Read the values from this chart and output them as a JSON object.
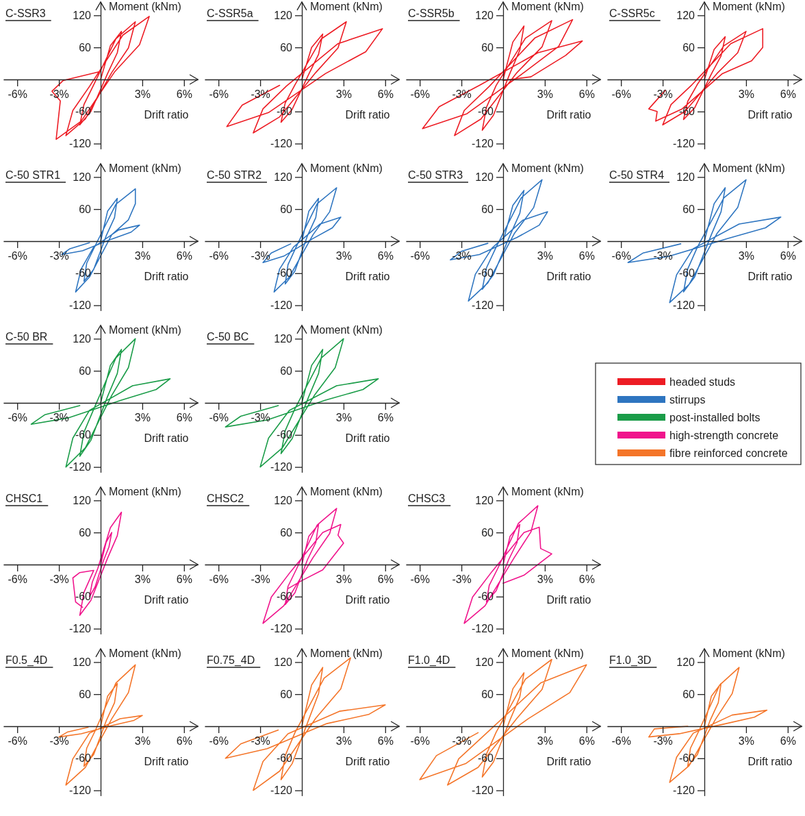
{
  "chart_data": [
    {
      "type": "line",
      "title": "C-SSR3",
      "xlabel": "Drift ratio",
      "ylabel": "Moment (kNm)",
      "xlim": [
        -7,
        7
      ],
      "ylim": [
        -130,
        145
      ],
      "xticks": [
        {
          "value": -6,
          "label": "-6%"
        },
        {
          "value": -3,
          "label": "-3%"
        },
        {
          "value": 3,
          "label": "3%"
        },
        {
          "value": 6,
          "label": "6%"
        }
      ],
      "yticks": [
        -120,
        -60,
        60,
        120
      ],
      "series": [
        {
          "name": "headed studs",
          "color": "#ed1c24",
          "x": [
            0,
            0.7,
            1.5,
            1.2,
            0.5,
            -0.7,
            -1.5,
            -1.2,
            -0.5,
            1.1,
            2.5,
            2,
            0.8,
            -1.1,
            -2.5,
            -2,
            -0.8,
            1.6,
            3.5,
            2.8,
            1,
            -1.4,
            -3.2,
            -2.9,
            -3.5,
            -2.7,
            0
          ],
          "values": [
            0,
            63,
            90,
            50,
            11,
            -60,
            -85,
            -47,
            -10,
            76,
            108,
            59,
            13,
            -74,
            -105,
            -58,
            -13,
            83,
            118,
            65,
            14,
            -78,
            -112,
            -40,
            -22,
            -2,
            15
          ]
        }
      ]
    },
    {
      "type": "line",
      "title": "C-SSR5a",
      "xlabel": "Drift ratio",
      "ylabel": "Moment (kNm)",
      "xlim": [
        -7,
        7
      ],
      "ylim": [
        -130,
        145
      ],
      "xticks": [
        {
          "value": -6,
          "label": "-6%"
        },
        {
          "value": -3,
          "label": "-3%"
        },
        {
          "value": 3,
          "label": "3%"
        },
        {
          "value": 6,
          "label": "6%"
        }
      ],
      "yticks": [
        -120,
        -60,
        60,
        120
      ],
      "series": [
        {
          "color": "#ed1c24",
          "x": [
            0,
            0.7,
            1.5,
            1.2,
            0.5,
            -0.7,
            -1.5,
            -1.2,
            -0.5,
            1.4,
            3.2,
            2.6,
            1,
            -1.6,
            -3.5,
            -2.8,
            -1.1,
            2.6,
            5.8,
            4.6,
            1.7,
            -2.4,
            -5.4,
            -4.3,
            -1.6
          ],
          "values": [
            0,
            60,
            85,
            47,
            10,
            -56,
            -80,
            -44,
            -10,
            76,
            108,
            59,
            13,
            -70,
            -100,
            -55,
            -12,
            67,
            95,
            52,
            11,
            -62,
            -88,
            -48,
            -11
          ]
        }
      ]
    },
    {
      "type": "line",
      "title": "C-SSR5b",
      "xlabel": "Drift ratio",
      "ylabel": "Moment (kNm)",
      "xlim": [
        -7,
        7
      ],
      "ylim": [
        -130,
        145
      ],
      "xticks": [
        {
          "value": -6,
          "label": "-6%"
        },
        {
          "value": -3,
          "label": "-3%"
        },
        {
          "value": 3,
          "label": "3%"
        },
        {
          "value": 6,
          "label": "6%"
        }
      ],
      "yticks": [
        -120,
        -60,
        60,
        120
      ],
      "series": [
        {
          "color": "#ed1c24",
          "x": [
            0,
            0.7,
            1.5,
            1.2,
            0.5,
            -0.7,
            -1.5,
            -1.2,
            -0.5,
            1.6,
            3.5,
            2.8,
            1,
            -1.6,
            -3.5,
            -2.8,
            -1,
            2.3,
            5,
            4,
            1.5,
            -2.6,
            -5.8,
            -4.6,
            -1.7,
            2.5,
            5.7,
            4.5,
            2,
            0
          ],
          "values": [
            0,
            70,
            100,
            55,
            12,
            -67,
            -95,
            -52,
            -11,
            77,
            110,
            61,
            13,
            -74,
            -105,
            -58,
            -13,
            78,
            112,
            62,
            13,
            -64,
            -92,
            -51,
            -11,
            50,
            72,
            45,
            5,
            -2
          ]
        }
      ]
    },
    {
      "type": "line",
      "title": "C-SSR5c",
      "xlabel": "Drift ratio",
      "ylabel": "Moment (kNm)",
      "xlim": [
        -7,
        7
      ],
      "ylim": [
        -130,
        145
      ],
      "xticks": [
        {
          "value": -6,
          "label": "-6%"
        },
        {
          "value": -3,
          "label": "-3%"
        },
        {
          "value": 3,
          "label": "3%"
        },
        {
          "value": 6,
          "label": "6%"
        }
      ],
      "yticks": [
        -120,
        -60,
        60,
        120
      ],
      "series": [
        {
          "color": "#ed1c24",
          "x": [
            0,
            0.7,
            1.5,
            1.2,
            0.5,
            -0.7,
            -1.5,
            -1.2,
            -0.5,
            1.4,
            3,
            2.4,
            0.9,
            -1.4,
            -3,
            -2.4,
            -0.9,
            1.9,
            4.2,
            4.2,
            3.4,
            1.3,
            -1.6,
            -3.5,
            -3.4,
            -4,
            -2.8
          ],
          "values": [
            0,
            56,
            80,
            44,
            10,
            -53,
            -75,
            -41,
            -9,
            63,
            90,
            50,
            11,
            -60,
            -85,
            -47,
            -10,
            67,
            95,
            60,
            35,
            11,
            -55,
            -78,
            -60,
            -55,
            -20
          ]
        }
      ]
    },
    {
      "type": "line",
      "title": "C-50 STR1",
      "xlabel": "Drift ratio",
      "ylabel": "Moment (kNm)",
      "xlim": [
        -7,
        7
      ],
      "ylim": [
        -130,
        145
      ],
      "xticks": [
        {
          "value": -6,
          "label": "-6%"
        },
        {
          "value": -3,
          "label": "-3%"
        },
        {
          "value": 3,
          "label": "3%"
        },
        {
          "value": 6,
          "label": "6%"
        }
      ],
      "yticks": [
        -120,
        -60,
        60,
        120
      ],
      "series": [
        {
          "name": "stirrups",
          "color": "#2e75c0",
          "x": [
            0,
            0.5,
            1.2,
            1,
            0.4,
            -0.5,
            -1.2,
            -1,
            -0.4,
            1.1,
            2.5,
            2.5,
            2,
            0.8,
            -0.8,
            -1.8,
            -1.4,
            -0.5,
            1.3,
            2.8,
            2.2,
            0.8,
            -1.3,
            -2.8,
            -2.2,
            -0.8
          ],
          "values": [
            0,
            56,
            80,
            44,
            10,
            -53,
            -75,
            -41,
            -9,
            69,
            98,
            70,
            40,
            12,
            -67,
            -95,
            -52,
            -11,
            21,
            30,
            17,
            4,
            -18,
            -25,
            -14,
            -3
          ]
        }
      ]
    },
    {
      "type": "line",
      "title": "C-50 STR2",
      "xlabel": "Drift ratio",
      "ylabel": "Moment (kNm)",
      "xlim": [
        -7,
        7
      ],
      "ylim": [
        -130,
        145
      ],
      "xticks": [
        {
          "value": -6,
          "label": "-6%"
        },
        {
          "value": -3,
          "label": "-3%"
        },
        {
          "value": 3,
          "label": "3%"
        },
        {
          "value": 6,
          "label": "6%"
        }
      ],
      "yticks": [
        -120,
        -60,
        60,
        120
      ],
      "series": [
        {
          "color": "#2e75c0",
          "x": [
            0,
            0.5,
            1.2,
            1,
            0.4,
            -0.5,
            -1.2,
            -1,
            -0.4,
            1.1,
            2.5,
            2,
            0.8,
            -0.9,
            -2,
            -1.6,
            -0.6,
            1.3,
            2.8,
            2.2,
            0.8,
            -1.3,
            -2.8,
            -2.2,
            -0.8
          ],
          "values": [
            0,
            56,
            80,
            44,
            10,
            -56,
            -80,
            -44,
            -10,
            70,
            100,
            55,
            12,
            -67,
            -95,
            -52,
            -11,
            32,
            45,
            25,
            5,
            -28,
            -40,
            -22,
            -5
          ]
        }
      ]
    },
    {
      "type": "line",
      "title": "C-50 STR3",
      "xlabel": "Drift ratio",
      "ylabel": "Moment (kNm)",
      "xlim": [
        -7,
        7
      ],
      "ylim": [
        -130,
        145
      ],
      "xticks": [
        {
          "value": -6,
          "label": "-6%"
        },
        {
          "value": -3,
          "label": "-3%"
        },
        {
          "value": 3,
          "label": "3%"
        },
        {
          "value": 6,
          "label": "6%"
        }
      ],
      "yticks": [
        -120,
        -60,
        60,
        120
      ],
      "series": [
        {
          "color": "#2e75c0",
          "x": [
            0,
            0.7,
            1.5,
            1.2,
            0.5,
            -0.7,
            -1.5,
            -1.2,
            -0.5,
            1.3,
            2.8,
            2.2,
            0.8,
            -1.1,
            -2.5,
            -2,
            -0.8,
            1.4,
            3.2,
            2.6,
            1,
            -1.7,
            -3.8,
            -3,
            -1.1
          ],
          "values": [
            0,
            67,
            95,
            52,
            11,
            -63,
            -90,
            -50,
            -11,
            81,
            115,
            63,
            14,
            -78,
            -112,
            -62,
            -13,
            39,
            55,
            30,
            7,
            -25,
            -35,
            -19,
            -4
          ]
        }
      ]
    },
    {
      "type": "line",
      "title": "C-50 STR4",
      "xlabel": "Drift ratio",
      "ylabel": "Moment (kNm)",
      "xlim": [
        -7,
        7
      ],
      "ylim": [
        -130,
        145
      ],
      "xticks": [
        {
          "value": -6,
          "label": "-6%"
        },
        {
          "value": -3,
          "label": "-3%"
        },
        {
          "value": 3,
          "label": "3%"
        },
        {
          "value": 6,
          "label": "6%"
        }
      ],
      "yticks": [
        -120,
        -60,
        60,
        120
      ],
      "series": [
        {
          "color": "#2e75c0",
          "x": [
            0,
            0.7,
            1.5,
            1.2,
            0.5,
            -0.7,
            -1.5,
            -1.2,
            -0.5,
            1.4,
            3,
            2.4,
            0.9,
            -1.1,
            -2.5,
            -2,
            -0.8,
            2.5,
            5.5,
            4.4,
            1.7,
            -2.5,
            -5.5,
            -4.4,
            -1.7
          ],
          "values": [
            0,
            70,
            100,
            55,
            12,
            -67,
            -95,
            -52,
            -11,
            81,
            115,
            63,
            14,
            -81,
            -115,
            -63,
            -14,
            32,
            45,
            25,
            5,
            -28,
            -40,
            -22,
            -5
          ]
        }
      ]
    },
    {
      "type": "line",
      "title": "C-50 BR",
      "xlabel": "Drift ratio",
      "ylabel": "Moment (kNm)",
      "xlim": [
        -7,
        7
      ],
      "ylim": [
        -130,
        145
      ],
      "xticks": [
        {
          "value": -6,
          "label": "-6%"
        },
        {
          "value": -3,
          "label": "-3%"
        },
        {
          "value": 3,
          "label": "3%"
        },
        {
          "value": 6,
          "label": "6%"
        }
      ],
      "yticks": [
        -120,
        -60,
        60,
        120
      ],
      "series": [
        {
          "name": "post-installed bolts",
          "color": "#1a9c48",
          "x": [
            0,
            0.7,
            1.5,
            1.2,
            0.5,
            -0.7,
            -1.5,
            -1.2,
            -0.5,
            1.1,
            2.5,
            2,
            0.8,
            -1.1,
            -2.5,
            -2,
            -0.8,
            2.3,
            5,
            4,
            1.5,
            -2.3,
            -5,
            -4,
            -1.5
          ],
          "values": [
            0,
            70,
            100,
            55,
            12,
            -70,
            -100,
            -55,
            -12,
            84,
            120,
            66,
            14,
            -84,
            -120,
            -66,
            -14,
            32,
            45,
            25,
            5,
            -28,
            -40,
            -22,
            -5
          ]
        }
      ]
    },
    {
      "type": "line",
      "title": "C-50 BC",
      "xlabel": "Drift ratio",
      "ylabel": "Moment (kNm)",
      "xlim": [
        -7,
        7
      ],
      "ylim": [
        -130,
        145
      ],
      "xticks": [
        {
          "value": -6,
          "label": "-6%"
        },
        {
          "value": -3,
          "label": "-3%"
        },
        {
          "value": 3,
          "label": "3%"
        },
        {
          "value": 6,
          "label": "6%"
        }
      ],
      "yticks": [
        -120,
        -60,
        60,
        120
      ],
      "series": [
        {
          "color": "#1a9c48",
          "x": [
            0,
            0.7,
            1.5,
            1.2,
            0.5,
            -0.7,
            -1.5,
            -1.2,
            -0.5,
            1.4,
            3,
            2.4,
            0.9,
            -1.4,
            -3,
            -2.4,
            -0.9,
            2.5,
            5.5,
            4.4,
            1.7,
            -2.5,
            -5.5,
            -4.4,
            -1.7
          ],
          "values": [
            0,
            70,
            100,
            55,
            12,
            -67,
            -95,
            -52,
            -11,
            84,
            120,
            66,
            14,
            -84,
            -120,
            -66,
            -14,
            32,
            45,
            25,
            5,
            -32,
            -45,
            -25,
            -5
          ]
        }
      ]
    },
    {
      "type": "line",
      "title": "CHSC1",
      "xlabel": "Drift ratio",
      "ylabel": "Moment (kNm)",
      "xlim": [
        -7,
        7
      ],
      "ylim": [
        -130,
        145
      ],
      "xticks": [
        {
          "value": -6,
          "label": "-6%"
        },
        {
          "value": -3,
          "label": "-3%"
        },
        {
          "value": 3,
          "label": "3%"
        },
        {
          "value": 6,
          "label": "6%"
        }
      ],
      "yticks": [
        -120,
        -60,
        60,
        120
      ],
      "series": [
        {
          "name": "high-strength concrete",
          "color": "#f0148c",
          "x": [
            0,
            0.4,
            0.8,
            0.6,
            0.2,
            -0.4,
            -0.8,
            -0.6,
            -0.2,
            0.7,
            1.5,
            1.2,
            0.5,
            -0.7,
            -1.5,
            -1.2,
            -0.5,
            -1.5,
            -2,
            -1.8,
            -1.3
          ],
          "values": [
            0,
            42,
            60,
            33,
            7,
            -42,
            -60,
            -33,
            -7,
            69,
            98,
            54,
            12,
            -67,
            -95,
            -52,
            -11,
            -15,
            -25,
            -70,
            -80
          ]
        }
      ]
    },
    {
      "type": "line",
      "title": "CHSC2",
      "xlabel": "Drift ratio",
      "ylabel": "Moment (kNm)",
      "xlim": [
        -7,
        7
      ],
      "ylim": [
        -130,
        145
      ],
      "xticks": [
        {
          "value": -6,
          "label": "-6%"
        },
        {
          "value": -3,
          "label": "-3%"
        },
        {
          "value": 3,
          "label": "3%"
        },
        {
          "value": 6,
          "label": "6%"
        }
      ],
      "yticks": [
        -120,
        -60,
        60,
        120
      ],
      "series": [
        {
          "color": "#f0148c",
          "x": [
            0,
            0.5,
            1.2,
            1,
            0.4,
            -0.5,
            -1.2,
            -1,
            -0.4,
            1.1,
            2.5,
            2,
            0.8,
            -1.3,
            -2.8,
            -2.2,
            -0.8,
            1.5,
            2.8,
            2.6,
            3,
            1.5,
            0,
            -1
          ],
          "values": [
            0,
            53,
            75,
            41,
            9,
            -53,
            -75,
            -41,
            -9,
            74,
            105,
            58,
            13,
            -77,
            -110,
            -61,
            -13,
            60,
            75,
            55,
            40,
            -10,
            -30,
            -45
          ]
        }
      ]
    },
    {
      "type": "line",
      "title": "CHSC3",
      "xlabel": "Drift ratio",
      "ylabel": "Moment (kNm)",
      "xlim": [
        -7,
        7
      ],
      "ylim": [
        -130,
        145
      ],
      "xticks": [
        {
          "value": -6,
          "label": "-6%"
        },
        {
          "value": -3,
          "label": "-3%"
        },
        {
          "value": 3,
          "label": "3%"
        },
        {
          "value": 6,
          "label": "6%"
        }
      ],
      "yticks": [
        -120,
        -60,
        60,
        120
      ],
      "series": [
        {
          "color": "#f0148c",
          "x": [
            0,
            0.5,
            1.2,
            1,
            0.4,
            -0.5,
            -1.2,
            -1,
            -0.4,
            1.1,
            2.5,
            2,
            0.8,
            -1.3,
            -2.8,
            -2.2,
            -0.8,
            1.5,
            2.6,
            2.7,
            3.5,
            1.5,
            0
          ],
          "values": [
            0,
            53,
            75,
            41,
            9,
            -49,
            -70,
            -39,
            -8,
            77,
            110,
            61,
            13,
            -77,
            -110,
            -61,
            -13,
            60,
            70,
            30,
            20,
            -20,
            -35
          ]
        }
      ]
    },
    {
      "type": "line",
      "title": "F0.5_4D",
      "xlabel": "Drift ratio",
      "ylabel": "Moment (kNm)",
      "xlim": [
        -7,
        7
      ],
      "ylim": [
        -130,
        145
      ],
      "xticks": [
        {
          "value": -6,
          "label": "-6%"
        },
        {
          "value": -3,
          "label": "-3%"
        },
        {
          "value": 3,
          "label": "3%"
        },
        {
          "value": 6,
          "label": "6%"
        }
      ],
      "yticks": [
        -120,
        -60,
        60,
        120
      ],
      "series": [
        {
          "name": "fibre reinforced concrete",
          "color": "#f47529",
          "x": [
            0,
            0.5,
            1.2,
            1,
            0.4,
            -0.5,
            -1.2,
            -1,
            -0.4,
            1.1,
            2.5,
            2,
            0.8,
            -1.1,
            -2.5,
            -2,
            -0.8,
            1.4,
            3,
            2.4,
            0.9,
            -1.4,
            -3,
            -2.4,
            -0.9
          ],
          "values": [
            0,
            56,
            80,
            44,
            10,
            -53,
            -75,
            -41,
            -9,
            81,
            115,
            63,
            14,
            -77,
            -110,
            -61,
            -13,
            14,
            20,
            11,
            2,
            -14,
            -20,
            -11,
            -2
          ]
        }
      ]
    },
    {
      "type": "line",
      "title": "F0.75_4D",
      "xlabel": "Drift ratio",
      "ylabel": "Moment (kNm)",
      "xlim": [
        -7,
        7
      ],
      "ylim": [
        -130,
        145
      ],
      "xticks": [
        {
          "value": -6,
          "label": "-6%"
        },
        {
          "value": -3,
          "label": "-3%"
        },
        {
          "value": 3,
          "label": "3%"
        },
        {
          "value": 6,
          "label": "6%"
        }
      ],
      "yticks": [
        -120,
        -60,
        60,
        120
      ],
      "series": [
        {
          "color": "#f47529",
          "x": [
            0,
            0.7,
            1.5,
            1.2,
            0.5,
            -0.7,
            -1.5,
            -1.2,
            -0.5,
            1.6,
            3.5,
            2.8,
            1,
            -1.6,
            -3.5,
            -2.8,
            -1,
            2.7,
            6,
            4.8,
            1.8,
            -2.5,
            -5.5,
            -4.4,
            -1.7
          ],
          "values": [
            0,
            77,
            110,
            61,
            13,
            -70,
            -100,
            -55,
            -12,
            90,
            128,
            70,
            15,
            -84,
            -120,
            -66,
            -14,
            28,
            40,
            22,
            5,
            -42,
            -60,
            -33,
            -7
          ]
        }
      ]
    },
    {
      "type": "line",
      "title": "F1.0_4D",
      "xlabel": "Drift ratio",
      "ylabel": "Moment (kNm)",
      "xlim": [
        -7,
        7
      ],
      "ylim": [
        -130,
        145
      ],
      "xticks": [
        {
          "value": -6,
          "label": "-6%"
        },
        {
          "value": -3,
          "label": "-3%"
        },
        {
          "value": 3,
          "label": "3%"
        },
        {
          "value": 6,
          "label": "6%"
        }
      ],
      "yticks": [
        -120,
        -60,
        60,
        120
      ],
      "series": [
        {
          "color": "#f47529",
          "x": [
            0,
            0.7,
            1.5,
            1.2,
            0.5,
            -0.7,
            -1.5,
            -1.2,
            -0.5,
            1.6,
            3.5,
            2.8,
            1,
            -1.8,
            -4,
            -3.2,
            -1.2,
            2.7,
            6,
            4.8,
            1.8,
            -2.7,
            -6,
            -4.8,
            -1.8
          ],
          "values": [
            0,
            70,
            100,
            55,
            12,
            -67,
            -95,
            -52,
            -11,
            88,
            125,
            69,
            15,
            -77,
            -110,
            -61,
            -13,
            81,
            115,
            63,
            14,
            -70,
            -100,
            -55,
            -12
          ]
        }
      ]
    },
    {
      "type": "line",
      "title": "F1.0_3D",
      "xlabel": "Drift ratio",
      "ylabel": "Moment (kNm)",
      "xlim": [
        -7,
        7
      ],
      "ylim": [
        -130,
        145
      ],
      "xticks": [
        {
          "value": -6,
          "label": "-6%"
        },
        {
          "value": -3,
          "label": "-3%"
        },
        {
          "value": 3,
          "label": "3%"
        },
        {
          "value": 6,
          "label": "6%"
        }
      ],
      "yticks": [
        -120,
        -60,
        60,
        120
      ],
      "series": [
        {
          "color": "#f47529",
          "x": [
            0,
            0.5,
            1.2,
            1,
            0.4,
            -0.5,
            -1.2,
            -1,
            -0.4,
            1.1,
            2.5,
            2,
            0.8,
            -1.1,
            -2.5,
            -2,
            -0.8,
            2,
            4.5,
            3.6,
            1.4,
            -1.8,
            -4,
            -3.6,
            -1.2
          ],
          "values": [
            0,
            56,
            80,
            44,
            10,
            -53,
            -75,
            -41,
            -9,
            77,
            110,
            61,
            13,
            -74,
            -105,
            -58,
            -13,
            21,
            30,
            17,
            4,
            -14,
            -20,
            -5,
            0
          ]
        }
      ]
    }
  ]
}
